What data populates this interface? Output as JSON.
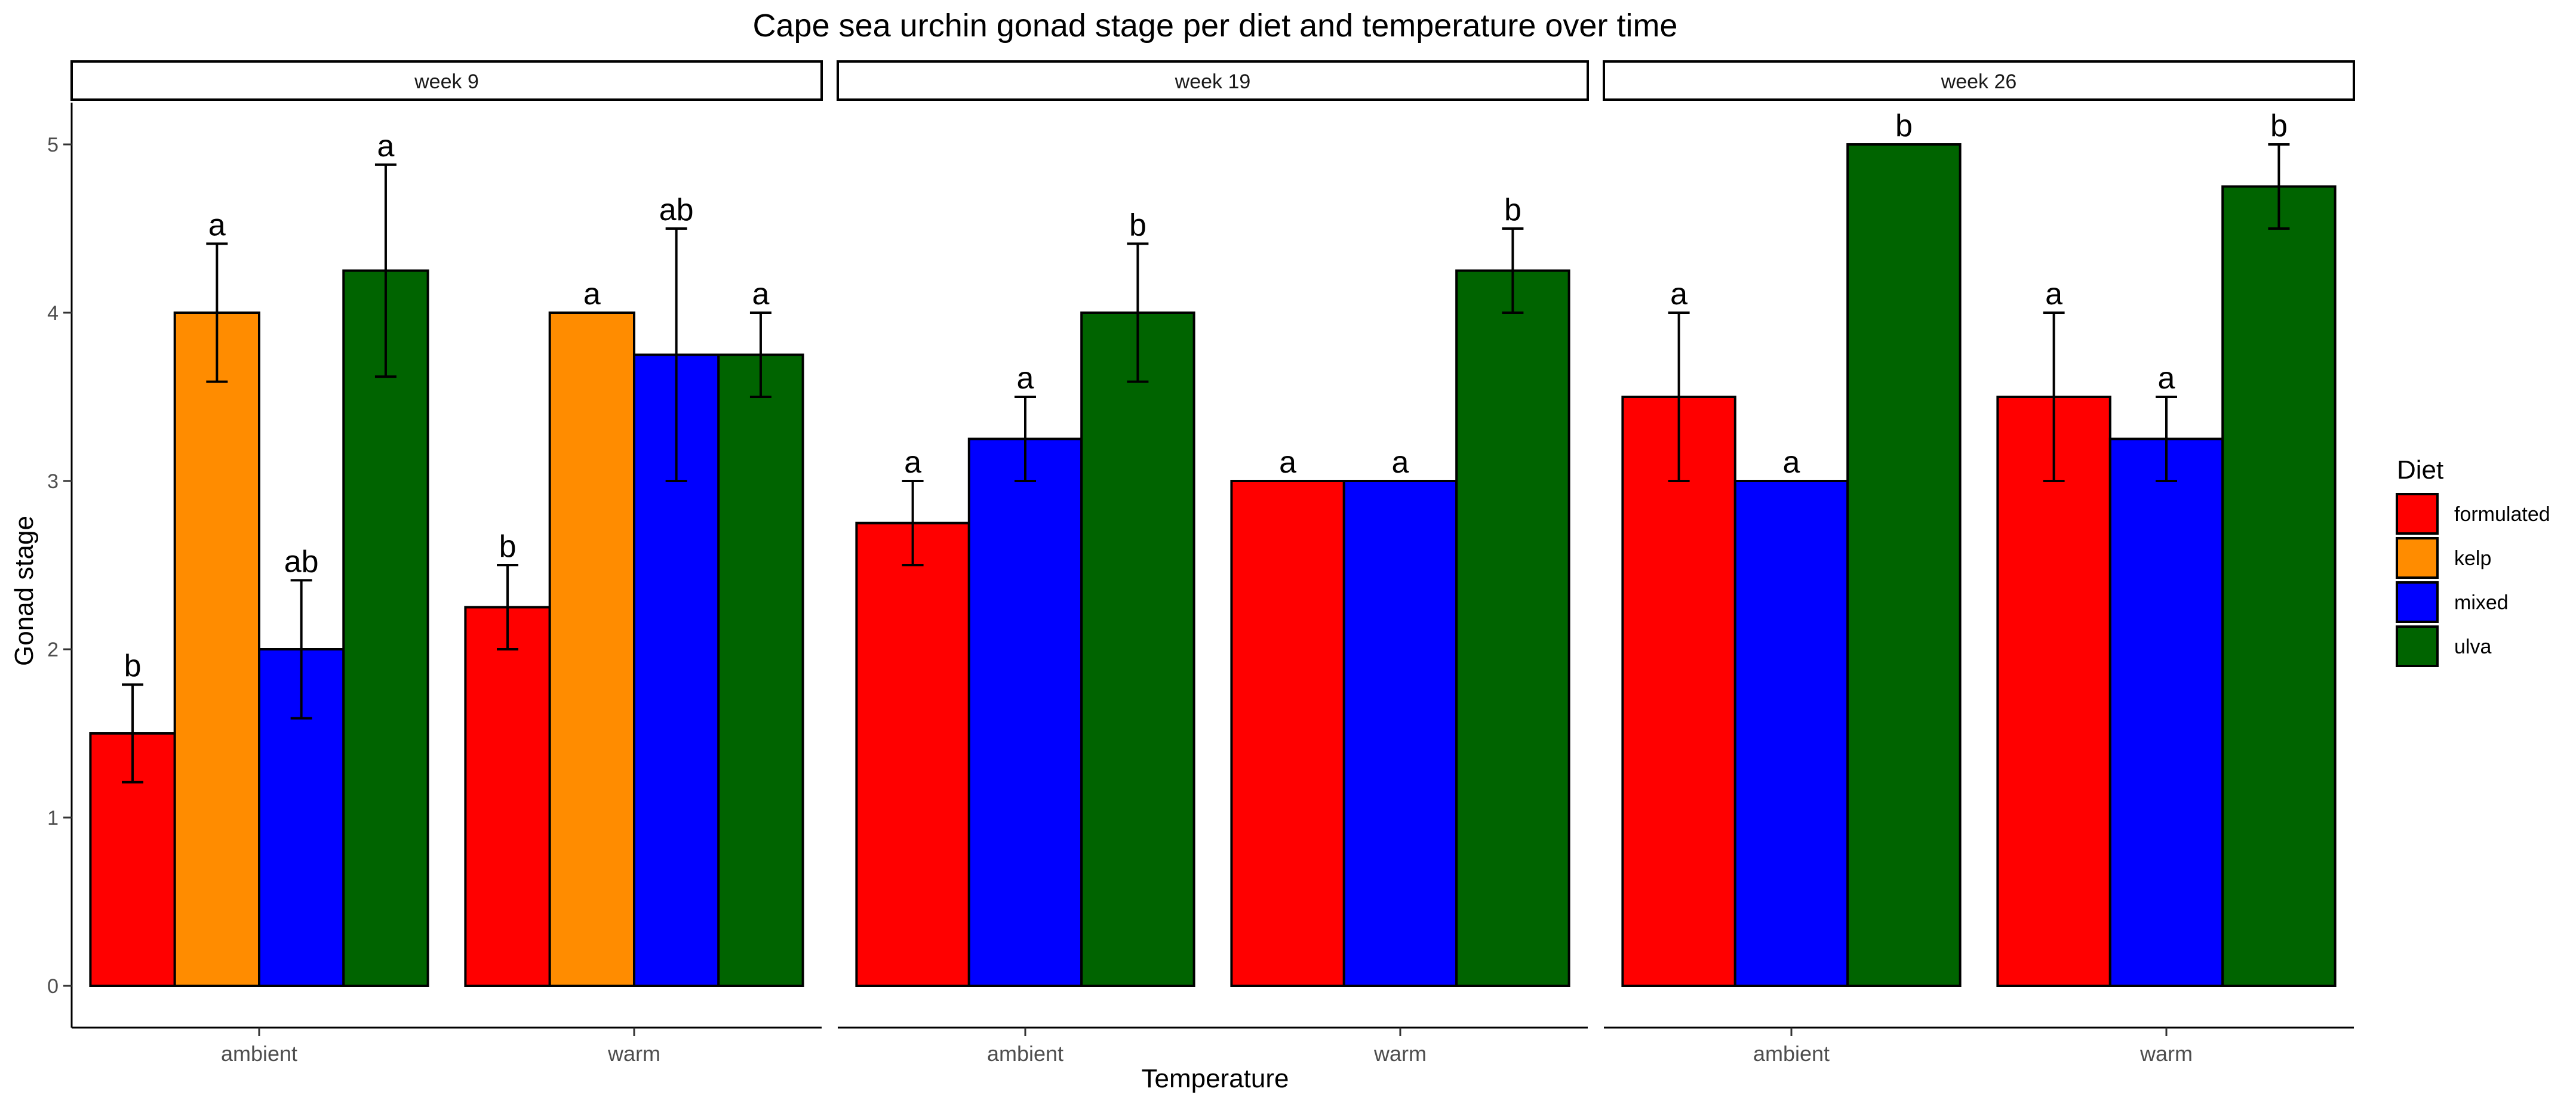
{
  "chart_data": {
    "type": "bar",
    "title": "Cape sea urchin gonad stage per diet and temperature over time",
    "xlabel": "Temperature",
    "ylabel": "Gonad stage",
    "ylim": [
      0,
      5.25
    ],
    "yticks": [
      0,
      1,
      2,
      3,
      4,
      5
    ],
    "grid": false,
    "legend": {
      "title": "Diet",
      "position": "right",
      "entries": [
        {
          "name": "formulated",
          "color": "#FF0000"
        },
        {
          "name": "kelp",
          "color": "#FF8C00"
        },
        {
          "name": "mixed",
          "color": "#0000FF"
        },
        {
          "name": "ulva",
          "color": "#006400"
        }
      ]
    },
    "panels": [
      {
        "label": "week 9",
        "groups": [
          {
            "category": "ambient",
            "bars": [
              {
                "diet": "formulated",
                "value": 1.5,
                "err": [
                  1.21,
                  1.79
                ],
                "letter": "b"
              },
              {
                "diet": "kelp",
                "value": 4.0,
                "err": [
                  3.59,
                  4.41
                ],
                "letter": "a"
              },
              {
                "diet": "mixed",
                "value": 2.0,
                "err": [
                  1.59,
                  2.41
                ],
                "letter": "ab"
              },
              {
                "diet": "ulva",
                "value": 4.25,
                "err": [
                  3.62,
                  4.88
                ],
                "letter": "a"
              }
            ]
          },
          {
            "category": "warm",
            "bars": [
              {
                "diet": "formulated",
                "value": 2.25,
                "err": [
                  2.0,
                  2.5
                ],
                "letter": "b"
              },
              {
                "diet": "kelp",
                "value": 4.0,
                "err": null,
                "letter": "a"
              },
              {
                "diet": "mixed",
                "value": 3.75,
                "err": [
                  3.0,
                  4.5
                ],
                "letter": "ab"
              },
              {
                "diet": "ulva",
                "value": 3.75,
                "err": [
                  3.5,
                  4.0
                ],
                "letter": "a"
              }
            ]
          }
        ]
      },
      {
        "label": "week 19",
        "groups": [
          {
            "category": "ambient",
            "bars": [
              {
                "diet": "formulated",
                "value": 2.75,
                "err": [
                  2.5,
                  3.0
                ],
                "letter": "a"
              },
              {
                "diet": "mixed",
                "value": 3.25,
                "err": [
                  3.0,
                  3.5
                ],
                "letter": "a"
              },
              {
                "diet": "ulva",
                "value": 4.0,
                "err": [
                  3.59,
                  4.41
                ],
                "letter": "b"
              }
            ]
          },
          {
            "category": "warm",
            "bars": [
              {
                "diet": "formulated",
                "value": 3.0,
                "err": null,
                "letter": "a"
              },
              {
                "diet": "mixed",
                "value": 3.0,
                "err": null,
                "letter": "a"
              },
              {
                "diet": "ulva",
                "value": 4.25,
                "err": [
                  4.0,
                  4.5
                ],
                "letter": "b"
              }
            ]
          }
        ]
      },
      {
        "label": "week 26",
        "groups": [
          {
            "category": "ambient",
            "bars": [
              {
                "diet": "formulated",
                "value": 3.5,
                "err": [
                  3.0,
                  4.0
                ],
                "letter": "a"
              },
              {
                "diet": "mixed",
                "value": 3.0,
                "err": null,
                "letter": "a"
              },
              {
                "diet": "ulva",
                "value": 5.0,
                "err": null,
                "letter": "b"
              }
            ]
          },
          {
            "category": "warm",
            "bars": [
              {
                "diet": "formulated",
                "value": 3.5,
                "err": [
                  3.0,
                  4.0
                ],
                "letter": "a"
              },
              {
                "diet": "mixed",
                "value": 3.25,
                "err": [
                  3.0,
                  3.5
                ],
                "letter": "a"
              },
              {
                "diet": "ulva",
                "value": 4.75,
                "err": [
                  4.5,
                  5.0
                ],
                "letter": "b"
              }
            ]
          }
        ]
      }
    ]
  }
}
